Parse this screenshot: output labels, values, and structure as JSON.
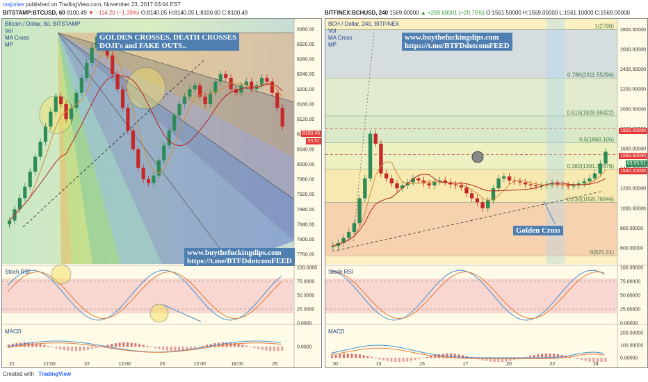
{
  "header": {
    "author": "majorlee",
    "published": "published on TradingView.com, November 23, 2017 03:04 EST"
  },
  "left": {
    "symbol": "BITSTAMP:BTCUSD, 60",
    "last": "8100.49",
    "change": "▼ −114.20 (−1.39%)",
    "ohlc": "O:8140.05 H:8140.05 L:8100.00 C:8100.49",
    "legend": {
      "title": "Bitcoin / Dollar, 60, BITSTAMP",
      "vol": "Vol",
      "ma": "MA Cross",
      "mp": "MP"
    },
    "banner_top": [
      "GOLDEN CROSSES, DEATH CROSSES",
      "DOJI's and FAKE OUTS.."
    ],
    "banner_bottom": [
      "www.buythefuckingdips.com",
      "https://t.me/BTFDdotcomFEED"
    ],
    "price_tag": "8100.49",
    "time_tag": "55:51",
    "rsi_label": "Stoch RSI",
    "macd_label": "MACD"
  },
  "right": {
    "symbol": "BITFINEX:BCHUSD, 240",
    "last": "1569.00000",
    "change": "▲ +269.60001 (+20.75%)",
    "ohlc": "O:1561.50000 H:1569.00000 L:1561.10000 C:1569.00000",
    "legend": {
      "title": "BCH / Dollar, 240, BITFINEX",
      "vol": "Vol",
      "ma": "MA Cross",
      "mp": "MP"
    },
    "banner": [
      "www.buythefuckingdips.com",
      "https://t.me/BTFDdotcomFEED"
    ],
    "golden_cross_label": "Golden Cross",
    "price_tag": "1569.00000",
    "time_tag": "03:55:51",
    "level_tag_1800": "1800.00000",
    "level_tag_1540": "1540.20000",
    "rsi_label": "Stoch RSI",
    "macd_label": "MACD"
  },
  "footer": {
    "created": "Created with",
    "brand": "TradingView"
  },
  "colors": {
    "bg": "#fffbe6",
    "up": "#2e8b57",
    "down": "#c62828",
    "accent": "#4f7fb0",
    "red_tag": "#e53935"
  },
  "chart_data": [
    {
      "type": "candlestick",
      "title": "Bitcoin / Dollar, 60, BITSTAMP",
      "xlabel": "",
      "ylabel": "",
      "ylim": [
        7740,
        8380
      ],
      "y_ticks": [
        7760,
        7800,
        7840,
        7880,
        7920,
        7960,
        8000,
        8040,
        8080,
        8120,
        8160,
        8200,
        8240,
        8280,
        8320,
        8360
      ],
      "x_ticks": [
        "21",
        "12:00",
        "22",
        "12:00",
        "23",
        "12:00",
        "18:00",
        "25"
      ],
      "close_series": [
        7850,
        7880,
        7910,
        7940,
        7980,
        8020,
        8060,
        8100,
        8140,
        8180,
        8160,
        8120,
        8150,
        8190,
        8230,
        8270,
        8310,
        8340,
        8330,
        8290,
        8240,
        8200,
        8150,
        8090,
        8040,
        7990,
        7960,
        7950,
        7970,
        8010,
        8050,
        8090,
        8130,
        8160,
        8180,
        8200,
        8210,
        8180,
        8160,
        8190,
        8220,
        8240,
        8230,
        8200,
        8190,
        8210,
        8220,
        8200,
        8210,
        8230,
        8220,
        8190,
        8150,
        8100
      ],
      "last_price": 8100.49,
      "rsi_ylim": [
        0,
        100
      ],
      "rsi_ticks": [
        0,
        25,
        50,
        75,
        100
      ],
      "macd_ticks": [
        0
      ]
    },
    {
      "type": "candlestick",
      "title": "BCH / Dollar, 240, BITFINEX",
      "xlabel": "",
      "ylabel": "",
      "ylim": [
        460,
        2880
      ],
      "y_ticks": [
        600,
        800,
        1000,
        1200,
        1400,
        1600,
        1800,
        2000,
        2200,
        2400,
        2600,
        2800
      ],
      "x_ticks": [
        "10",
        "13",
        "15",
        "17",
        "20",
        "22",
        "24"
      ],
      "close_series": [
        620,
        650,
        700,
        760,
        850,
        1100,
        1300,
        1750,
        1650,
        1350,
        1300,
        1250,
        1200,
        1230,
        1260,
        1300,
        1280,
        1250,
        1230,
        1270,
        1280,
        1260,
        1240,
        1230,
        1210,
        1150,
        1100,
        1060,
        1000,
        1080,
        1200,
        1300,
        1320,
        1280,
        1270,
        1260,
        1240,
        1230,
        1220,
        1230,
        1240,
        1250,
        1240,
        1230,
        1220,
        1230,
        1250,
        1270,
        1300,
        1350,
        1450,
        1569
      ],
      "last_price": 1569,
      "fib_levels": [
        {
          "ratio": "1",
          "price": 2799.0
        },
        {
          "ratio": "0.786",
          "price": 2311.55294
        },
        {
          "ratio": "0.618",
          "price": 1928.88422
        },
        {
          "ratio": "0.5",
          "price": 1660.105
        },
        {
          "ratio": "0.382",
          "price": 1391.32578
        },
        {
          "ratio": "0.236",
          "price": 1058.76844
        },
        {
          "ratio": "0",
          "price": 521.21
        }
      ],
      "horizontal_levels": [
        1800,
        1540.2
      ],
      "rsi_ylim": [
        0,
        100
      ],
      "rsi_ticks": [
        0,
        25,
        50,
        75,
        100
      ],
      "macd_ticks": [
        0,
        100,
        200
      ]
    }
  ]
}
